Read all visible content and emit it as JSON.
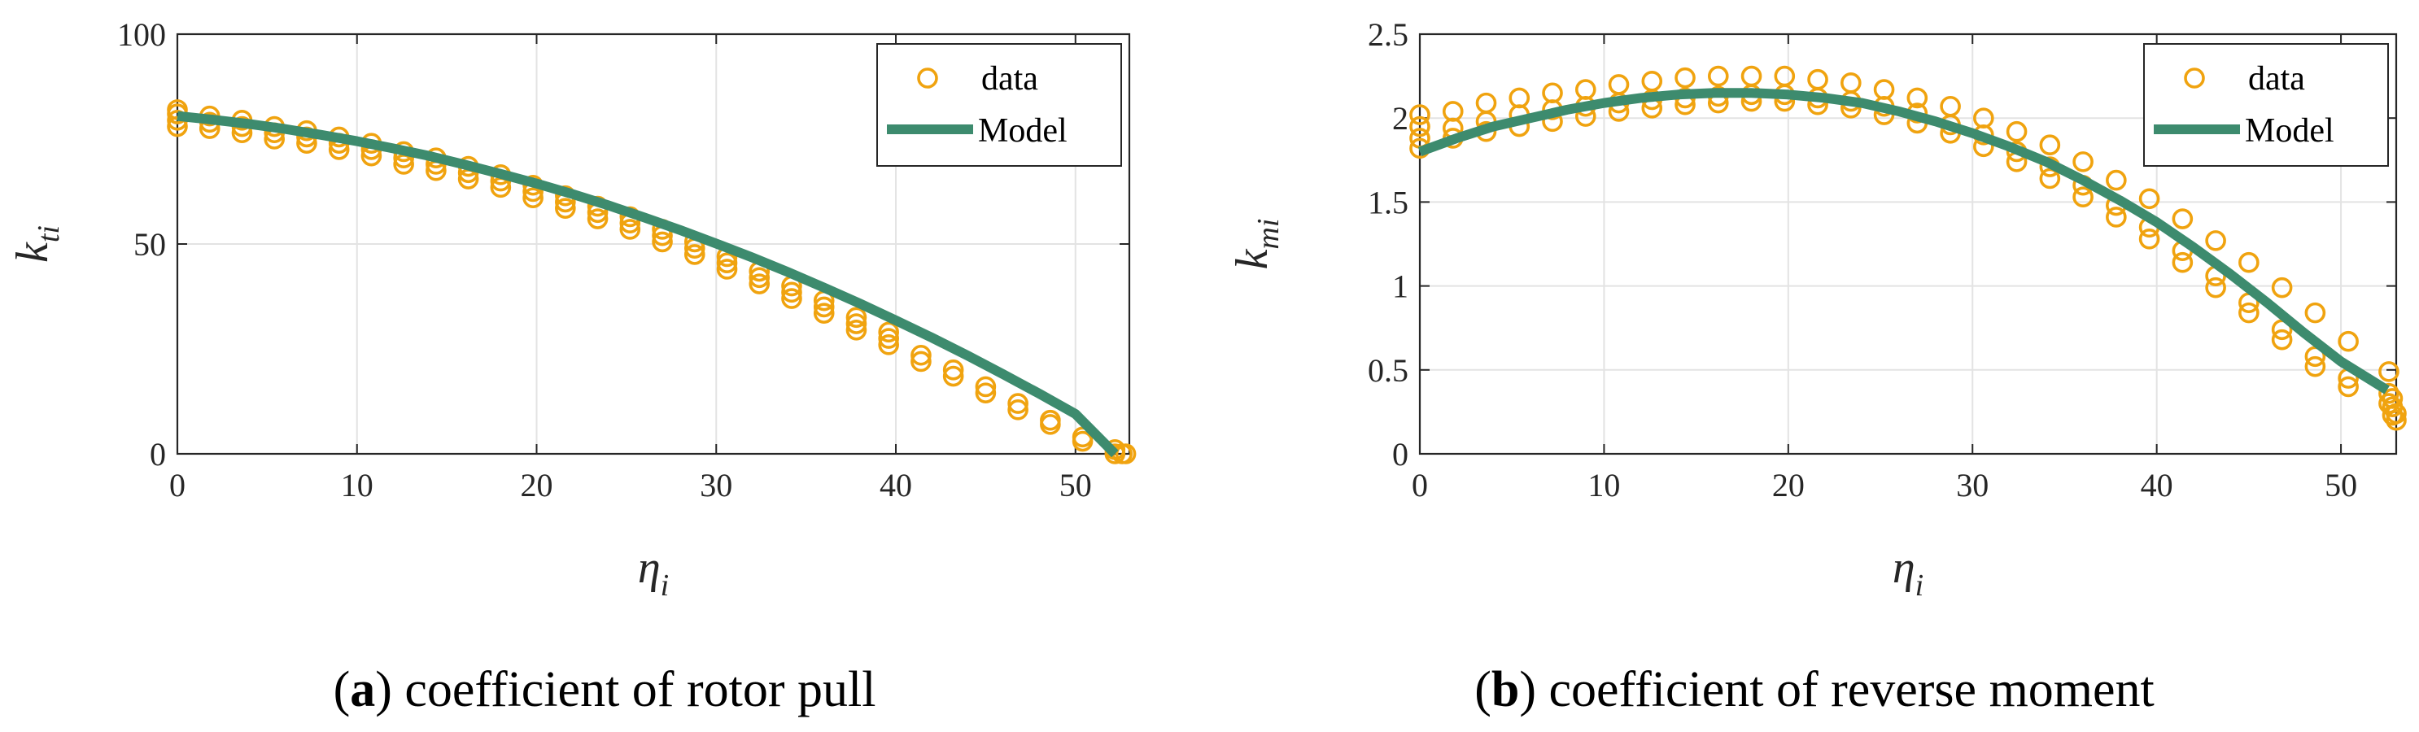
{
  "colors": {
    "data": "#F0A30F",
    "model": "#3D8B6E",
    "axis": "#262626",
    "grid": "#e3e3e3"
  },
  "chart_data": [
    {
      "type": "scatter",
      "id": "a",
      "caption_letter": "a",
      "caption_text": "coefficient of rotor pull",
      "xlabel": {
        "base": "η",
        "sub": "i"
      },
      "ylabel": {
        "base": "k",
        "sub": "ti"
      },
      "xlim": [
        0,
        53
      ],
      "ylim": [
        0,
        100
      ],
      "xticks": [
        0,
        10,
        20,
        30,
        40,
        50
      ],
      "yticks": [
        0,
        50,
        100
      ],
      "grid": true,
      "legend": {
        "position": "top-right",
        "entries": [
          "data",
          "Model"
        ]
      },
      "series": [
        {
          "name": "data",
          "style": "circle-markers",
          "x_groups": [
            0,
            1.8,
            3.6,
            5.4,
            7.2,
            9.0,
            10.8,
            12.6,
            14.4,
            16.2,
            18.0,
            19.8,
            21.6,
            23.4,
            25.2,
            27.0,
            28.8,
            30.6,
            32.4,
            34.2,
            36.0,
            37.8,
            39.6,
            41.4,
            43.2,
            45.0,
            46.8,
            48.6,
            50.4,
            52.2,
            52.6,
            52.8
          ],
          "y_groups": [
            [
              78,
              79.5,
              81,
              82
            ],
            [
              77.5,
              79,
              80.5
            ],
            [
              76.5,
              78,
              79.5
            ],
            [
              75,
              76.5,
              78
            ],
            [
              74,
              75.5,
              77
            ],
            [
              72.5,
              74,
              75.5
            ],
            [
              71,
              72.5,
              74
            ],
            [
              69,
              70.5,
              72
            ],
            [
              67.5,
              69,
              70.5
            ],
            [
              65.5,
              67,
              68.5
            ],
            [
              63.5,
              65,
              66.5
            ],
            [
              61,
              62.5,
              64
            ],
            [
              58.5,
              60,
              61.5
            ],
            [
              56,
              57.5,
              59
            ],
            [
              53.5,
              55,
              56.5
            ],
            [
              50.5,
              52,
              53.5
            ],
            [
              47.5,
              49,
              50.5
            ],
            [
              44,
              45.5,
              47
            ],
            [
              40.5,
              42,
              43.5
            ],
            [
              37,
              38.5,
              40
            ],
            [
              33.5,
              35,
              36.5
            ],
            [
              29.5,
              31,
              32.5
            ],
            [
              26,
              27.5,
              29
            ],
            [
              22,
              23.5
            ],
            [
              18.5,
              20
            ],
            [
              14.5,
              16
            ],
            [
              10.5,
              12
            ],
            [
              7,
              8
            ],
            [
              3,
              4
            ],
            [
              0,
              1
            ],
            [
              0
            ],
            [
              0
            ]
          ]
        },
        {
          "name": "Model",
          "style": "line",
          "x": [
            0,
            2,
            4,
            6,
            8,
            10,
            12,
            14,
            16,
            18,
            20,
            22,
            24,
            26,
            28,
            30,
            32,
            34,
            36,
            38,
            40,
            42,
            44,
            46,
            48,
            50,
            52.2
          ],
          "y": [
            80.5,
            79.6,
            78.6,
            77.4,
            76.0,
            74.5,
            72.8,
            71.0,
            68.9,
            66.7,
            64.4,
            61.9,
            59.2,
            56.3,
            53.3,
            50.1,
            46.8,
            43.3,
            39.6,
            35.8,
            31.8,
            27.7,
            23.4,
            18.9,
            14.3,
            9.5,
            0
          ]
        }
      ]
    },
    {
      "type": "scatter",
      "id": "b",
      "caption_letter": "b",
      "caption_text": "coefficient of reverse moment",
      "xlabel": {
        "base": "η",
        "sub": "i"
      },
      "ylabel": {
        "base": "k",
        "sub": "mi"
      },
      "xlim": [
        0,
        53
      ],
      "ylim": [
        0,
        2.5
      ],
      "xticks": [
        0,
        10,
        20,
        30,
        40,
        50
      ],
      "yticks": [
        0,
        0.5,
        1,
        1.5,
        2,
        2.5
      ],
      "grid": true,
      "legend": {
        "position": "top-right",
        "entries": [
          "data",
          "Model"
        ]
      },
      "series": [
        {
          "name": "data",
          "style": "circle-markers",
          "x_groups": [
            0,
            1.8,
            3.6,
            5.4,
            7.2,
            9.0,
            10.8,
            12.6,
            14.4,
            16.2,
            18.0,
            19.8,
            21.6,
            23.4,
            25.2,
            27.0,
            28.8,
            30.6,
            32.4,
            34.2,
            36.0,
            37.8,
            39.6,
            41.4,
            43.2,
            45.0,
            46.8,
            48.6,
            50.4,
            52.6,
            52.8,
            53.0
          ],
          "y_groups": [
            [
              1.82,
              1.88,
              1.95,
              2.02
            ],
            [
              1.88,
              1.94,
              2.04
            ],
            [
              1.92,
              1.98,
              2.09
            ],
            [
              1.95,
              2.02,
              2.12
            ],
            [
              1.98,
              2.05,
              2.15
            ],
            [
              2.01,
              2.07,
              2.17
            ],
            [
              2.04,
              2.09,
              2.2
            ],
            [
              2.06,
              2.11,
              2.22
            ],
            [
              2.08,
              2.12,
              2.24
            ],
            [
              2.09,
              2.13,
              2.25
            ],
            [
              2.1,
              2.14,
              2.25
            ],
            [
              2.1,
              2.14,
              2.25
            ],
            [
              2.08,
              2.12,
              2.23
            ],
            [
              2.06,
              2.1,
              2.21
            ],
            [
              2.02,
              2.07,
              2.17
            ],
            [
              1.97,
              2.03,
              2.12
            ],
            [
              1.91,
              1.96,
              2.07
            ],
            [
              1.83,
              1.9,
              2.0
            ],
            [
              1.74,
              1.8,
              1.92
            ],
            [
              1.64,
              1.71,
              1.84
            ],
            [
              1.53,
              1.6,
              1.74
            ],
            [
              1.41,
              1.48,
              1.63
            ],
            [
              1.28,
              1.35,
              1.52
            ],
            [
              1.14,
              1.21,
              1.4
            ],
            [
              0.99,
              1.06,
              1.27
            ],
            [
              0.84,
              0.9,
              1.14
            ],
            [
              0.68,
              0.74,
              0.99
            ],
            [
              0.52,
              0.58,
              0.84
            ],
            [
              0.4,
              0.45,
              0.67
            ],
            [
              0.3,
              0.36,
              0.49
            ],
            [
              0.23,
              0.28,
              0.33
            ],
            [
              0.2,
              0.24
            ]
          ]
        },
        {
          "name": "Model",
          "style": "line",
          "x": [
            0,
            2,
            4,
            6,
            8,
            10,
            12,
            14,
            16,
            18,
            20,
            22,
            24,
            26,
            28,
            30,
            32,
            34,
            36,
            38,
            40,
            42,
            44,
            46,
            48,
            50,
            52.5
          ],
          "y": [
            1.8,
            1.88,
            1.95,
            2.0,
            2.05,
            2.09,
            2.12,
            2.14,
            2.15,
            2.15,
            2.14,
            2.12,
            2.09,
            2.04,
            1.98,
            1.91,
            1.83,
            1.74,
            1.63,
            1.51,
            1.38,
            1.23,
            1.07,
            0.9,
            0.72,
            0.55,
            0.38
          ]
        }
      ]
    }
  ]
}
